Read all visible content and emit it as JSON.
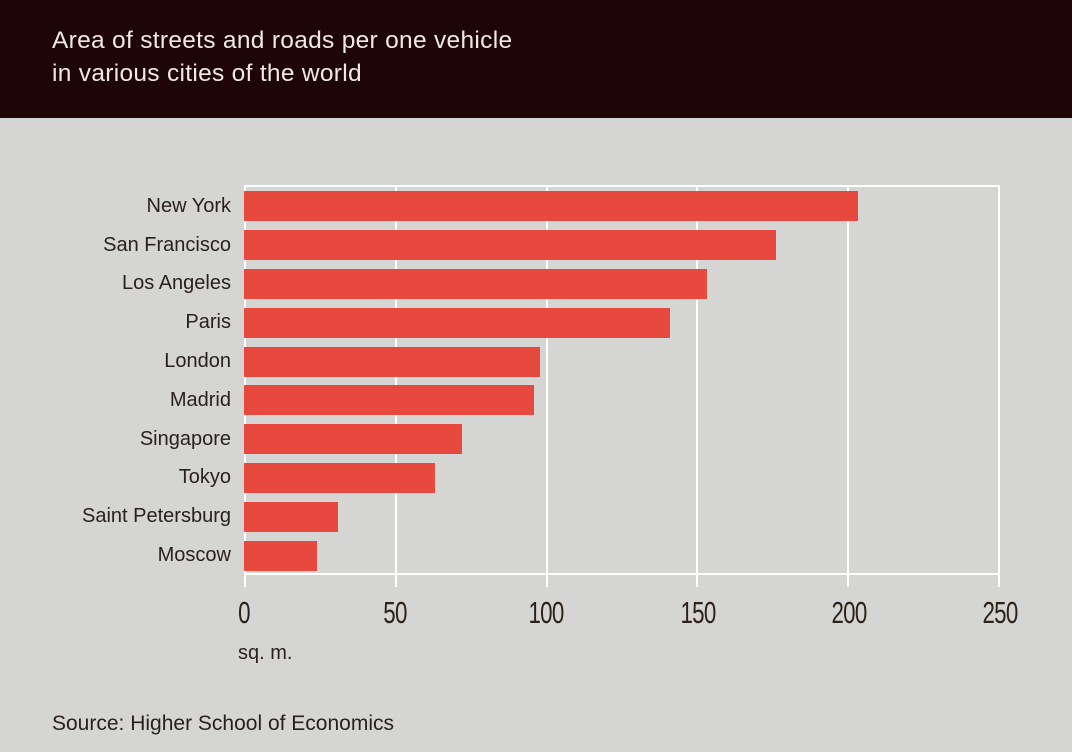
{
  "header": {
    "title_line1": "Area of streets and roads per one vehicle",
    "title_line2": "in various cities of the world"
  },
  "footer": {
    "source": "Source: Higher School of Economics"
  },
  "chart_data": {
    "type": "bar",
    "orientation": "horizontal",
    "title": "Area of streets and roads per one vehicle in various cities of the world",
    "categories": [
      "New York",
      "San Francisco",
      "Los Angeles",
      "Paris",
      "London",
      "Madrid",
      "Singapore",
      "Tokyo",
      "Saint Petersburg",
      "Moscow"
    ],
    "values": [
      203,
      176,
      153,
      141,
      98,
      96,
      72,
      63,
      31,
      24
    ],
    "xlabel": "sq. m.",
    "xlim": [
      0,
      250
    ],
    "xticks": [
      0,
      50,
      100,
      150,
      200,
      250
    ],
    "grid": true,
    "legend": false,
    "bar_color": "#e8493e",
    "source": "Source: Higher School of Economics"
  },
  "colors": {
    "header_bg": "#1d0605",
    "header_text": "#f0e8e5",
    "page_bg": "#d5d5d3",
    "bar": "#e8493e",
    "label_text": "#29211f",
    "gridline": "#ffffff"
  }
}
